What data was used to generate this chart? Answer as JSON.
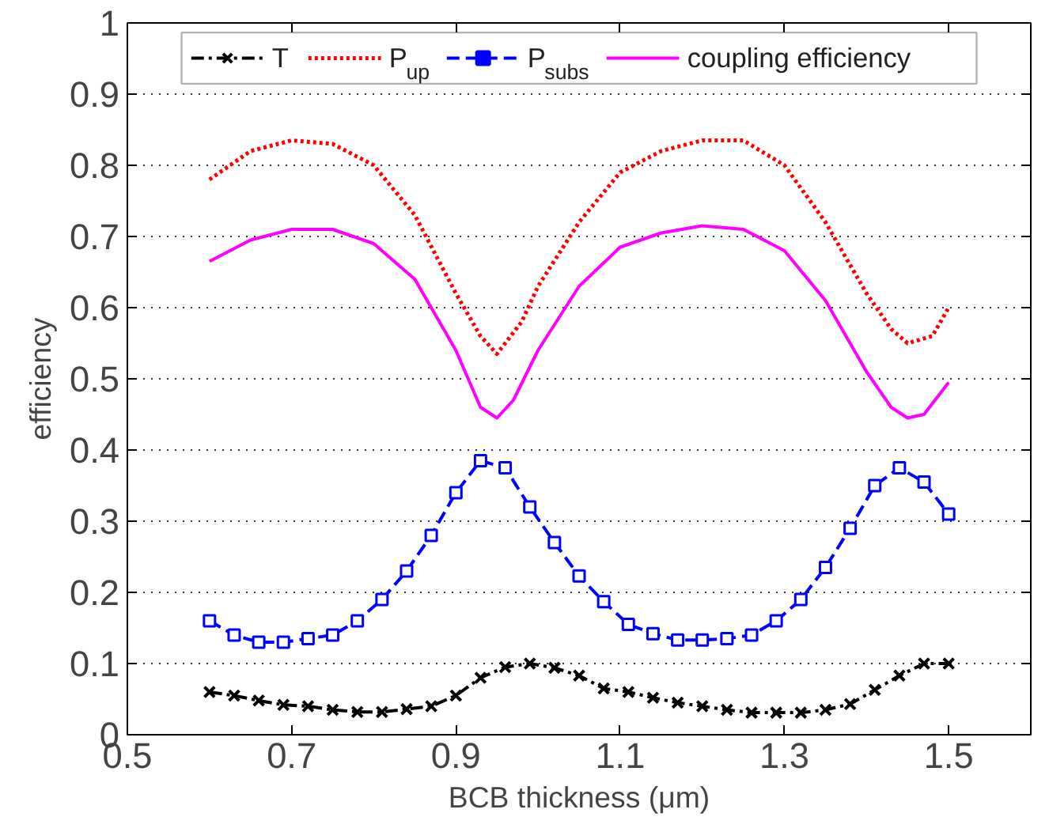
{
  "chart_data": {
    "type": "line",
    "xlabel": "BCB thickness (μm)",
    "ylabel": "efficiency",
    "xlim": [
      0.5,
      1.6
    ],
    "ylim": [
      0,
      1
    ],
    "xticks": [
      0.5,
      0.7,
      0.9,
      1.1,
      1.3,
      1.5
    ],
    "yticks": [
      0,
      0.1,
      0.2,
      0.3,
      0.4,
      0.5,
      0.6,
      0.7,
      0.8,
      0.9,
      1
    ],
    "grid": "y",
    "legend": "top",
    "series": [
      {
        "name": "T",
        "color": "#000000",
        "marker": "cross",
        "line_style": "dashdot",
        "x": [
          0.6,
          0.63,
          0.66,
          0.69,
          0.72,
          0.75,
          0.78,
          0.81,
          0.84,
          0.87,
          0.9,
          0.93,
          0.96,
          0.99,
          1.02,
          1.05,
          1.08,
          1.11,
          1.14,
          1.17,
          1.2,
          1.23,
          1.26,
          1.29,
          1.32,
          1.35,
          1.38,
          1.41,
          1.44,
          1.47,
          1.5
        ],
        "values": [
          0.06,
          0.055,
          0.048,
          0.042,
          0.04,
          0.035,
          0.032,
          0.032,
          0.036,
          0.04,
          0.055,
          0.08,
          0.095,
          0.1,
          0.094,
          0.083,
          0.065,
          0.06,
          0.052,
          0.045,
          0.04,
          0.035,
          0.031,
          0.031,
          0.031,
          0.035,
          0.043,
          0.063,
          0.083,
          0.1,
          0.1
        ]
      },
      {
        "name": "P$_{up}$",
        "color": "#ff0000",
        "marker": "none",
        "line_style": "dotted",
        "x": [
          0.6,
          0.65,
          0.7,
          0.75,
          0.8,
          0.85,
          0.9,
          0.93,
          0.95,
          0.98,
          1.0,
          1.05,
          1.1,
          1.15,
          1.2,
          1.25,
          1.3,
          1.35,
          1.4,
          1.43,
          1.45,
          1.48,
          1.5
        ],
        "values": [
          0.78,
          0.82,
          0.835,
          0.83,
          0.8,
          0.73,
          0.62,
          0.56,
          0.535,
          0.58,
          0.63,
          0.72,
          0.79,
          0.82,
          0.835,
          0.835,
          0.8,
          0.72,
          0.62,
          0.57,
          0.55,
          0.56,
          0.6
        ]
      },
      {
        "name": "P$_{subs}$",
        "color": "#0000ff",
        "marker": "square",
        "line_style": "dashed",
        "x": [
          0.6,
          0.63,
          0.66,
          0.69,
          0.72,
          0.75,
          0.78,
          0.81,
          0.84,
          0.87,
          0.9,
          0.93,
          0.96,
          0.99,
          1.02,
          1.05,
          1.08,
          1.11,
          1.14,
          1.17,
          1.2,
          1.23,
          1.26,
          1.29,
          1.32,
          1.35,
          1.38,
          1.41,
          1.44,
          1.47,
          1.5
        ],
        "values": [
          0.16,
          0.14,
          0.13,
          0.13,
          0.135,
          0.14,
          0.16,
          0.19,
          0.23,
          0.28,
          0.34,
          0.385,
          0.375,
          0.32,
          0.27,
          0.223,
          0.187,
          0.155,
          0.142,
          0.133,
          0.133,
          0.135,
          0.14,
          0.16,
          0.19,
          0.235,
          0.29,
          0.35,
          0.375,
          0.355,
          0.31
        ]
      },
      {
        "name": "coupling efficiency",
        "color": "#ff00ff",
        "marker": "none",
        "line_style": "solid",
        "x": [
          0.6,
          0.65,
          0.7,
          0.75,
          0.8,
          0.85,
          0.9,
          0.93,
          0.95,
          0.97,
          1.0,
          1.05,
          1.1,
          1.15,
          1.2,
          1.25,
          1.3,
          1.35,
          1.4,
          1.43,
          1.45,
          1.47,
          1.5
        ],
        "values": [
          0.665,
          0.695,
          0.71,
          0.71,
          0.69,
          0.64,
          0.54,
          0.46,
          0.445,
          0.47,
          0.54,
          0.63,
          0.685,
          0.705,
          0.715,
          0.71,
          0.68,
          0.61,
          0.51,
          0.46,
          0.445,
          0.45,
          0.495
        ]
      }
    ]
  }
}
